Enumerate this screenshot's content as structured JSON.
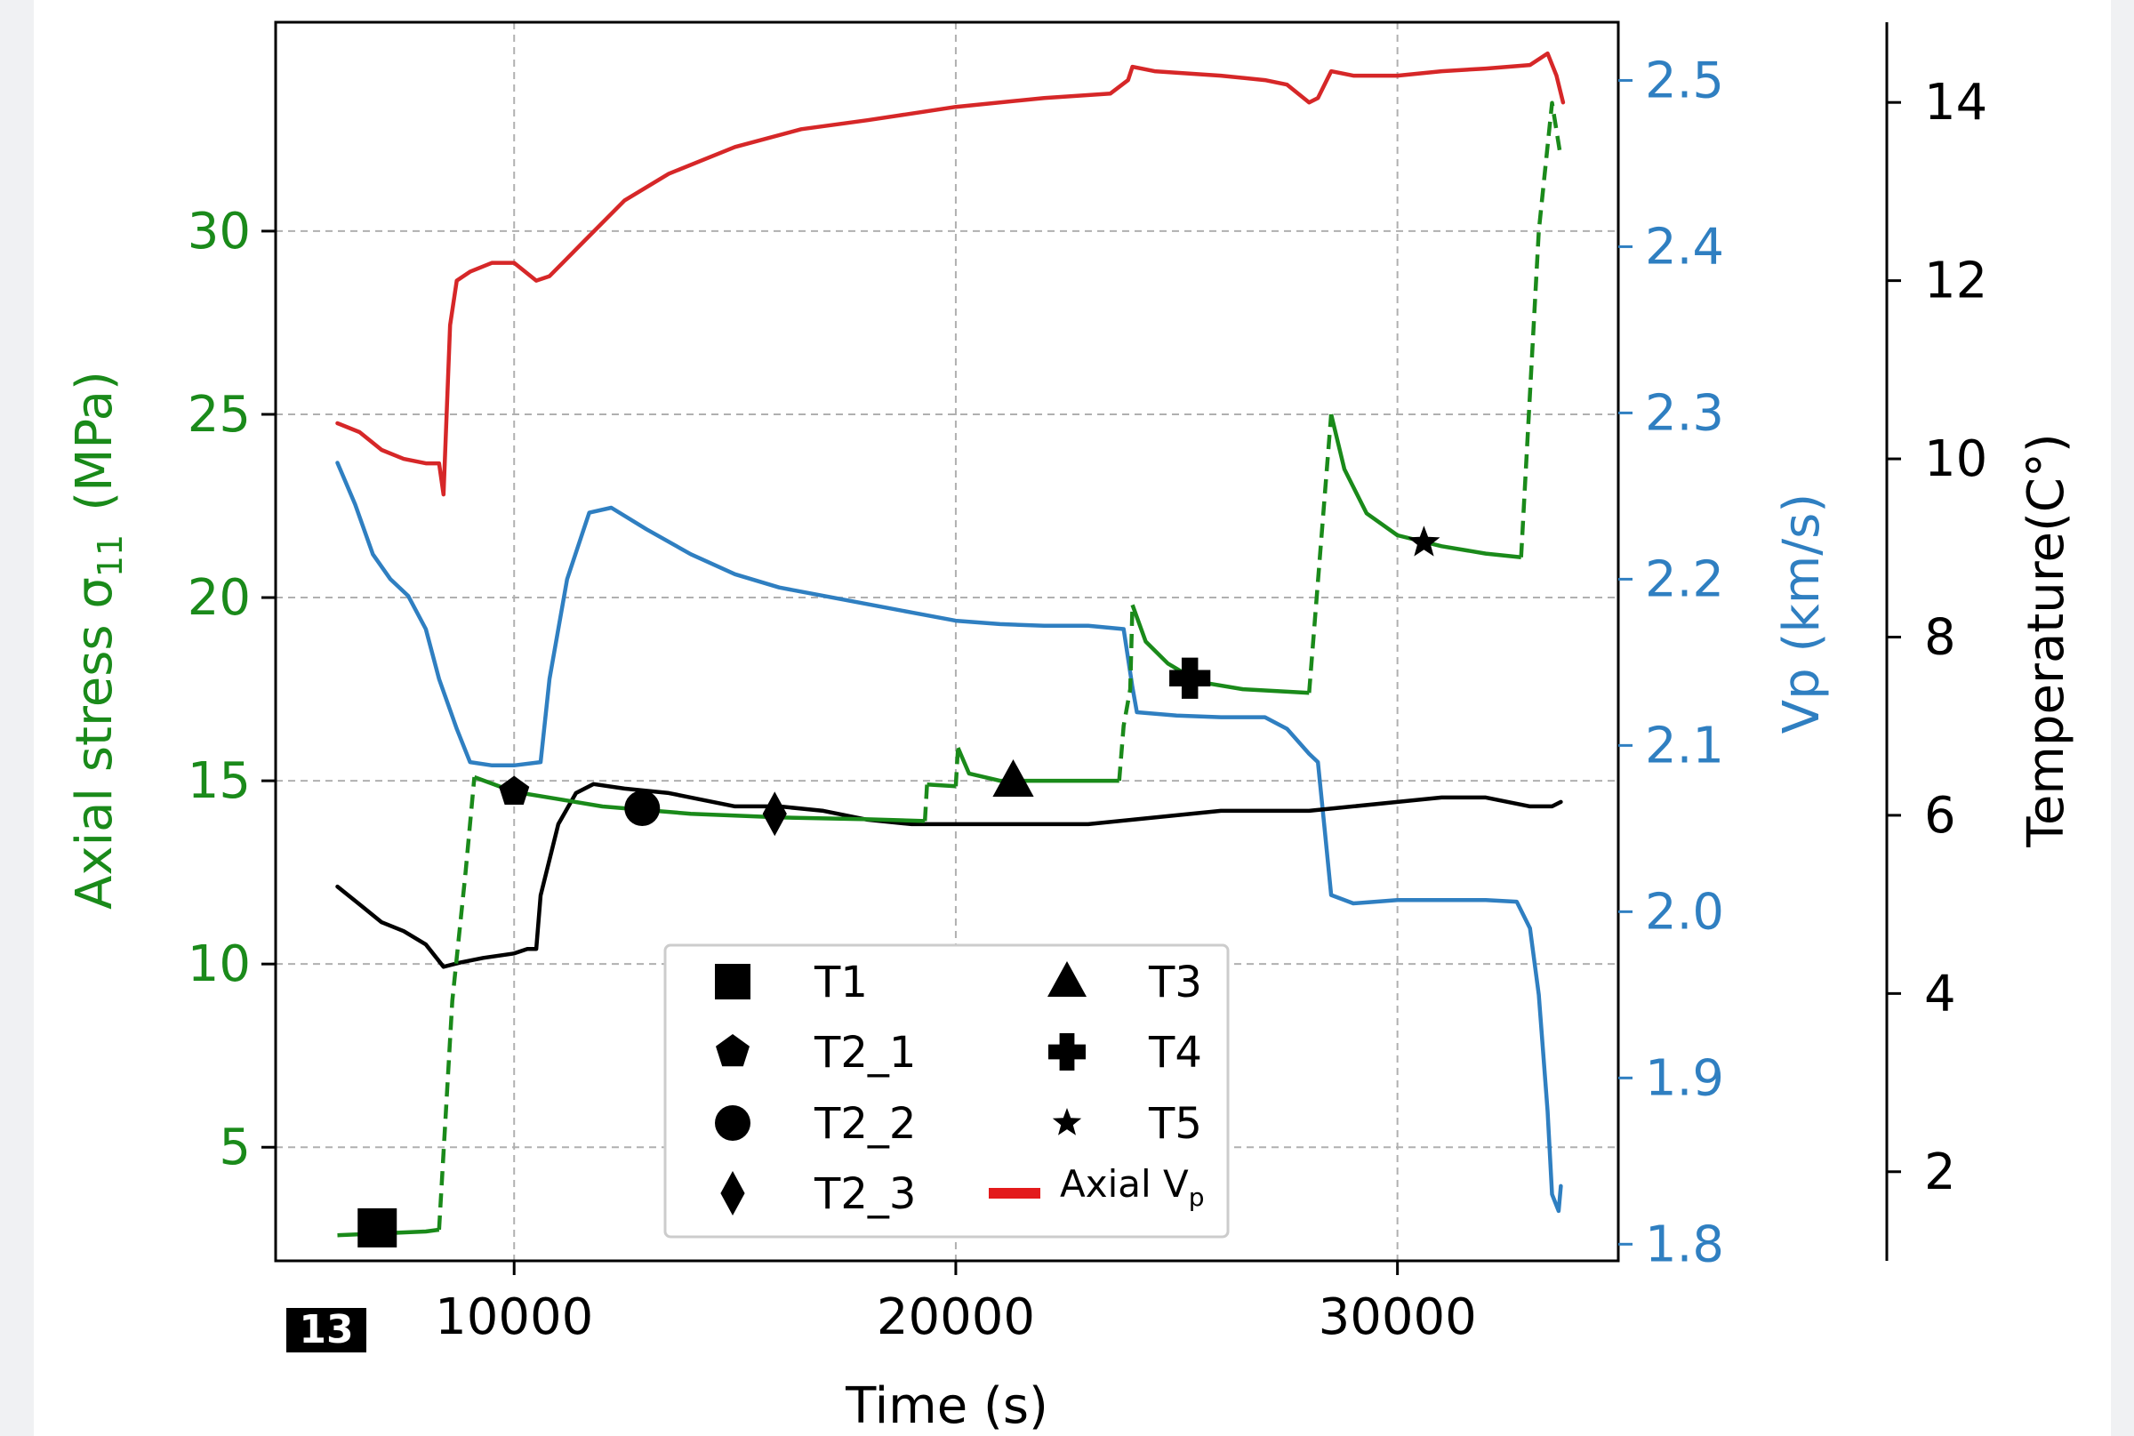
{
  "chart_data": {
    "type": "line",
    "title": "",
    "xlabel": "Time (s)",
    "xlim": [
      4600,
      35000
    ],
    "xticks": [
      "10000",
      "20000",
      "30000"
    ],
    "grid": true,
    "axes": {
      "stress": {
        "label": "Axial stress σ11 (MPa)",
        "label_main": "Axial stress σ",
        "label_sub": "11",
        "label_unit": "(MPa)",
        "color": "#1a8a1a",
        "ylim": [
          1.9,
          35.7
        ],
        "ticks": [
          "5",
          "10",
          "15",
          "20",
          "25",
          "30"
        ]
      },
      "vp": {
        "label": "Vp (km/s)",
        "color": "#2f7fc1",
        "ylim": [
          1.79,
          2.535
        ],
        "ticks": [
          "1.8",
          "1.9",
          "2.0",
          "2.1",
          "2.2",
          "2.3",
          "2.4",
          "2.5"
        ]
      },
      "temperature": {
        "label": "Temperature(C°)",
        "color": "#000000",
        "ylim": [
          1.0,
          14.9
        ],
        "ticks": [
          "2",
          "4",
          "6",
          "8",
          "10",
          "12",
          "14"
        ]
      }
    },
    "series": [
      {
        "name": "Axial Vp",
        "axis": "temperature",
        "color": "#d62728",
        "points": [
          [
            6000,
            10.4
          ],
          [
            6500,
            10.3
          ],
          [
            7000,
            10.1
          ],
          [
            7500,
            10.0
          ],
          [
            8000,
            9.95
          ],
          [
            8300,
            9.95
          ],
          [
            8400,
            9.6
          ],
          [
            8550,
            11.5
          ],
          [
            8700,
            12.0
          ],
          [
            9000,
            12.1
          ],
          [
            9500,
            12.2
          ],
          [
            10000,
            12.2
          ],
          [
            10500,
            12.0
          ],
          [
            10800,
            12.05
          ],
          [
            11500,
            12.4
          ],
          [
            12500,
            12.9
          ],
          [
            13500,
            13.2
          ],
          [
            15000,
            13.5
          ],
          [
            16500,
            13.7
          ],
          [
            18000,
            13.8
          ],
          [
            20000,
            13.95
          ],
          [
            22000,
            14.05
          ],
          [
            23500,
            14.1
          ],
          [
            23900,
            14.25
          ],
          [
            24000,
            14.4
          ],
          [
            24500,
            14.35
          ],
          [
            26000,
            14.3
          ],
          [
            27000,
            14.25
          ],
          [
            27500,
            14.2
          ],
          [
            28000,
            14.0
          ],
          [
            28200,
            14.05
          ],
          [
            28500,
            14.35
          ],
          [
            29000,
            14.3
          ],
          [
            30000,
            14.3
          ],
          [
            31000,
            14.35
          ],
          [
            32000,
            14.38
          ],
          [
            33000,
            14.42
          ],
          [
            33400,
            14.55
          ],
          [
            33600,
            14.3
          ],
          [
            33750,
            14.0
          ]
        ]
      },
      {
        "name": "Vp",
        "axis": "vp",
        "color": "#2f7fc1",
        "points": [
          [
            6000,
            2.27
          ],
          [
            6400,
            2.245
          ],
          [
            6800,
            2.215
          ],
          [
            7200,
            2.2
          ],
          [
            7600,
            2.19
          ],
          [
            8000,
            2.17
          ],
          [
            8300,
            2.14
          ],
          [
            8700,
            2.11
          ],
          [
            9000,
            2.09
          ],
          [
            9500,
            2.088
          ],
          [
            10000,
            2.088
          ],
          [
            10600,
            2.09
          ],
          [
            10800,
            2.14
          ],
          [
            11200,
            2.2
          ],
          [
            11700,
            2.24
          ],
          [
            12200,
            2.243
          ],
          [
            13000,
            2.23
          ],
          [
            14000,
            2.215
          ],
          [
            15000,
            2.203
          ],
          [
            16000,
            2.195
          ],
          [
            17000,
            2.19
          ],
          [
            18000,
            2.185
          ],
          [
            19000,
            2.18
          ],
          [
            20000,
            2.175
          ],
          [
            21000,
            2.173
          ],
          [
            22000,
            2.172
          ],
          [
            23000,
            2.172
          ],
          [
            23800,
            2.17
          ],
          [
            24000,
            2.135
          ],
          [
            24100,
            2.12
          ],
          [
            25000,
            2.118
          ],
          [
            26000,
            2.117
          ],
          [
            27000,
            2.117
          ],
          [
            27500,
            2.11
          ],
          [
            28000,
            2.095
          ],
          [
            28200,
            2.09
          ],
          [
            28350,
            2.05
          ],
          [
            28500,
            2.01
          ],
          [
            29000,
            2.005
          ],
          [
            30000,
            2.007
          ],
          [
            31000,
            2.007
          ],
          [
            32000,
            2.007
          ],
          [
            32700,
            2.006
          ],
          [
            33000,
            1.99
          ],
          [
            33200,
            1.95
          ],
          [
            33400,
            1.88
          ],
          [
            33500,
            1.83
          ],
          [
            33650,
            1.82
          ],
          [
            33700,
            1.835
          ]
        ]
      },
      {
        "name": "Temperature",
        "axis": "temperature",
        "color": "#000000",
        "points": [
          [
            6000,
            5.2
          ],
          [
            6500,
            5.0
          ],
          [
            7000,
            4.8
          ],
          [
            7500,
            4.7
          ],
          [
            8000,
            4.55
          ],
          [
            8400,
            4.3
          ],
          [
            8800,
            4.35
          ],
          [
            9300,
            4.4
          ],
          [
            10000,
            4.45
          ],
          [
            10300,
            4.5
          ],
          [
            10500,
            4.5
          ],
          [
            10600,
            5.1
          ],
          [
            11000,
            5.9
          ],
          [
            11400,
            6.25
          ],
          [
            11800,
            6.35
          ],
          [
            12500,
            6.3
          ],
          [
            13500,
            6.25
          ],
          [
            14000,
            6.2
          ],
          [
            15000,
            6.1
          ],
          [
            16000,
            6.1
          ],
          [
            17000,
            6.05
          ],
          [
            18000,
            5.95
          ],
          [
            19000,
            5.9
          ],
          [
            20000,
            5.9
          ],
          [
            21000,
            5.9
          ],
          [
            22000,
            5.9
          ],
          [
            23000,
            5.9
          ],
          [
            24000,
            5.95
          ],
          [
            25000,
            6.0
          ],
          [
            26000,
            6.05
          ],
          [
            27000,
            6.05
          ],
          [
            28000,
            6.05
          ],
          [
            29000,
            6.1
          ],
          [
            30000,
            6.15
          ],
          [
            31000,
            6.2
          ],
          [
            32000,
            6.2
          ],
          [
            32500,
            6.15
          ],
          [
            33000,
            6.1
          ],
          [
            33500,
            6.1
          ],
          [
            33700,
            6.15
          ]
        ]
      },
      {
        "name": "Axial stress",
        "axis": "stress",
        "color": "#1a8a1a",
        "segments": [
          {
            "style": "solid",
            "points": [
              [
                6000,
                2.6
              ],
              [
                7000,
                2.65
              ],
              [
                8000,
                2.7
              ],
              [
                8300,
                2.75
              ]
            ]
          },
          {
            "style": "dashed",
            "points": [
              [
                8300,
                2.75
              ],
              [
                8600,
                9.0
              ],
              [
                8900,
                12.5
              ],
              [
                9100,
                15.1
              ]
            ]
          },
          {
            "style": "solid",
            "points": [
              [
                9100,
                15.1
              ],
              [
                10000,
                14.7
              ],
              [
                11000,
                14.5
              ],
              [
                12000,
                14.3
              ],
              [
                13000,
                14.2
              ],
              [
                14000,
                14.1
              ],
              [
                16000,
                14.0
              ],
              [
                18000,
                13.95
              ],
              [
                19300,
                13.9
              ]
            ]
          },
          {
            "style": "dashed",
            "points": [
              [
                19300,
                13.9
              ],
              [
                19350,
                14.9
              ]
            ]
          },
          {
            "style": "solid",
            "points": [
              [
                19350,
                14.9
              ],
              [
                20000,
                14.85
              ]
            ]
          },
          {
            "style": "dashed",
            "points": [
              [
                20000,
                14.85
              ],
              [
                20050,
                15.9
              ]
            ]
          },
          {
            "style": "solid",
            "points": [
              [
                20050,
                15.9
              ],
              [
                20300,
                15.2
              ],
              [
                21000,
                15.0
              ],
              [
                22000,
                15.0
              ],
              [
                23000,
                15.0
              ],
              [
                23700,
                15.0
              ]
            ]
          },
          {
            "style": "dashed",
            "points": [
              [
                23700,
                15.0
              ],
              [
                23800,
                16.5
              ],
              [
                23950,
                17.5
              ],
              [
                24000,
                19.8
              ]
            ]
          },
          {
            "style": "solid",
            "points": [
              [
                24000,
                19.8
              ],
              [
                24300,
                18.8
              ],
              [
                24800,
                18.2
              ],
              [
                25500,
                17.7
              ],
              [
                26500,
                17.5
              ],
              [
                28000,
                17.4
              ]
            ]
          },
          {
            "style": "dashed",
            "points": [
              [
                28000,
                17.4
              ],
              [
                28500,
                25.0
              ]
            ]
          },
          {
            "style": "solid",
            "points": [
              [
                28500,
                25.0
              ],
              [
                28800,
                23.5
              ],
              [
                29300,
                22.3
              ],
              [
                30000,
                21.7
              ],
              [
                31000,
                21.4
              ],
              [
                32000,
                21.2
              ],
              [
                32800,
                21.1
              ]
            ]
          },
          {
            "style": "dashed",
            "points": [
              [
                32800,
                21.1
              ],
              [
                33200,
                30.0
              ],
              [
                33500,
                33.5
              ],
              [
                33700,
                32.0
              ]
            ]
          }
        ]
      }
    ],
    "markers": [
      {
        "label": "T1",
        "shape": "square",
        "x": 6900,
        "y": 2.8
      },
      {
        "label": "T2_1",
        "shape": "pentagon",
        "x": 10000,
        "y": 14.7
      },
      {
        "label": "T2_2",
        "shape": "circle",
        "x": 12900,
        "y": 14.25
      },
      {
        "label": "T2_3",
        "shape": "diamond",
        "x": 15900,
        "y": 14.1
      },
      {
        "label": "T3",
        "shape": "triangle",
        "x": 21300,
        "y": 15.0
      },
      {
        "label": "T4",
        "shape": "plus",
        "x": 25300,
        "y": 17.8
      },
      {
        "label": "T5",
        "shape": "star",
        "x": 30600,
        "y": 21.5
      }
    ],
    "legend": {
      "placement": "lower-center",
      "entries": [
        {
          "label": "T1",
          "shape": "square"
        },
        {
          "label": "T2_1",
          "shape": "pentagon"
        },
        {
          "label": "T2_2",
          "shape": "circle"
        },
        {
          "label": "T2_3",
          "shape": "diamond"
        },
        {
          "label": "T3",
          "shape": "triangle"
        },
        {
          "label": "T4",
          "shape": "plus"
        },
        {
          "label": "T5",
          "shape": "star"
        },
        {
          "label": "Axial V",
          "sub": "p",
          "shape": "redline",
          "color": "#e31a1c"
        }
      ]
    }
  },
  "figure_badge": "13"
}
